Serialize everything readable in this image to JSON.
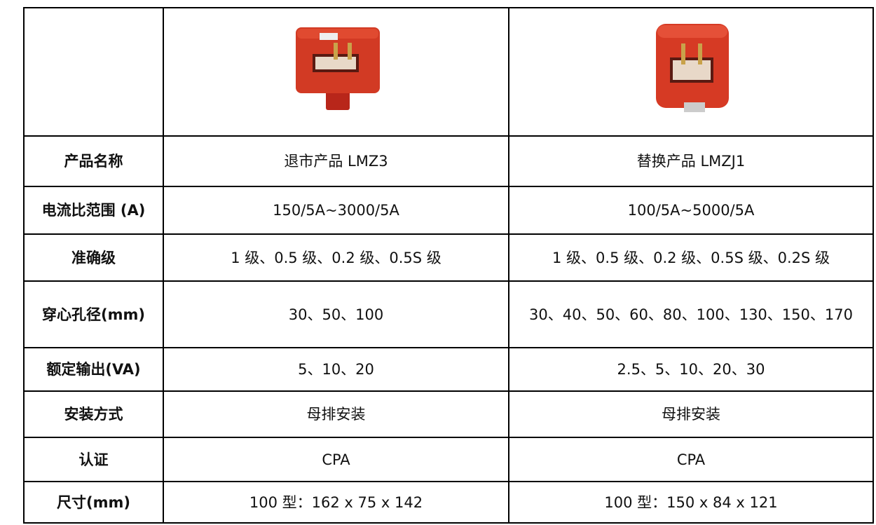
{
  "table": {
    "rows": [
      [
        "产品名称",
        "退市产品 LMZ3",
        "替换产品 LMZJ1"
      ],
      [
        "电流比范围 (A)",
        "150/5A~3000/5A",
        "100/5A~5000/5A"
      ],
      [
        "准确级",
        "1 级、0.5 级、0.2 级、0.5S 级",
        "1 级、0.5 级、0.2 级、0.5S 级、0.2S 级"
      ],
      [
        "穿心孔径(mm)",
        "30、50、100",
        "30、40、50、60、80、100、130、150、170"
      ],
      [
        "额定输出(VA)",
        "5、10、20",
        "2.5、5、10、20、30"
      ],
      [
        "安装方式",
        "母排安装",
        "母排安装"
      ],
      [
        "认证",
        "CPA",
        "CPA"
      ],
      [
        "尺寸(mm)",
        "100 型：162 x 75 x 142",
        "100 型：150 x 84 x 121"
      ]
    ]
  }
}
